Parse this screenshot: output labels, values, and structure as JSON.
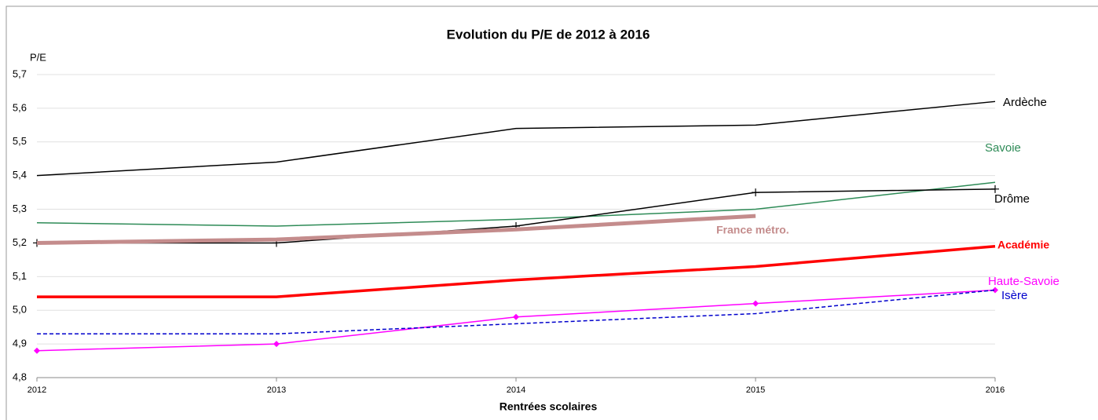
{
  "chart_data": {
    "type": "line",
    "title": "Evolution du P/E de 2012 à 2016",
    "y_label": "P/E",
    "x_label": "Rentrées scolaires",
    "x": [
      2012,
      2013,
      2014,
      2015,
      2016
    ],
    "xlim": [
      2012,
      2016
    ],
    "xticks": [
      2012,
      2013,
      2014,
      2015,
      2016
    ],
    "ylim": [
      4.8,
      5.7
    ],
    "yticks": [
      {
        "value": 4.8,
        "label": "4,8"
      },
      {
        "value": 4.9,
        "label": "4,9"
      },
      {
        "value": 5.0,
        "label": "5,0"
      },
      {
        "value": 5.1,
        "label": "5,1"
      },
      {
        "value": 5.2,
        "label": "5,2"
      },
      {
        "value": 5.3,
        "label": "5,3"
      },
      {
        "value": 5.4,
        "label": "5,4"
      },
      {
        "value": 5.5,
        "label": "5,5"
      },
      {
        "value": 5.6,
        "label": "5,6"
      },
      {
        "value": 5.7,
        "label": "5,7"
      }
    ],
    "grid": true,
    "series": [
      {
        "name": "Ardèche",
        "color": "#000000",
        "width": 1.5,
        "values": [
          5.4,
          5.44,
          5.54,
          5.55,
          5.62
        ]
      },
      {
        "name": "Savoie",
        "color": "#2e8b57",
        "width": 1.5,
        "values": [
          5.26,
          5.25,
          5.27,
          5.3,
          5.38
        ]
      },
      {
        "name": "Drôme",
        "color": "#000000",
        "width": 1.5,
        "marker": "plus",
        "values": [
          5.2,
          5.2,
          5.25,
          5.35,
          5.36
        ]
      },
      {
        "name": "France métro.",
        "color": "#c48c8c",
        "width": 5,
        "values": [
          5.2,
          5.21,
          5.24,
          5.28,
          null
        ]
      },
      {
        "name": "Académie",
        "color": "#ff0000",
        "width": 3.5,
        "values": [
          5.04,
          5.04,
          5.09,
          5.13,
          5.19
        ]
      },
      {
        "name": "Haute-Savoie",
        "color": "#ff00ff",
        "width": 1.5,
        "marker": "diamond",
        "values": [
          4.88,
          4.9,
          4.98,
          5.02,
          5.06
        ]
      },
      {
        "name": "Isère",
        "color": "#0000cc",
        "width": 1.5,
        "dashed": true,
        "values": [
          4.93,
          4.93,
          4.96,
          4.99,
          5.06
        ]
      }
    ]
  }
}
